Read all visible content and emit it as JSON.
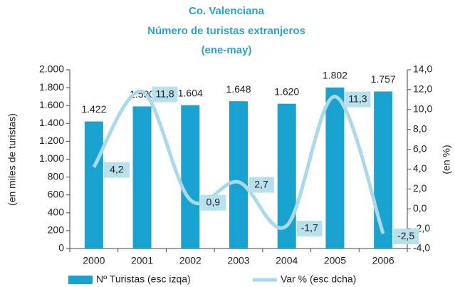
{
  "chart_data": {
    "type": "bar_line",
    "title": [
      "Co. Valenciana",
      "Número de turistas extranjeros",
      "(ene-may)"
    ],
    "y_label": "(en miles de turistas)",
    "y2_label": "(en %)",
    "categories": [
      "2000",
      "2001",
      "2002",
      "2003",
      "2004",
      "2005",
      "2006"
    ],
    "series": [
      {
        "name": "Nº Turistas (esc izqa)",
        "type": "bar",
        "color": "#19a2cf",
        "values": [
          1422,
          1590,
          1604,
          1648,
          1620,
          1802,
          1757
        ],
        "value_labels": [
          "1.422",
          "1.590",
          "1.604",
          "1.648",
          "1.620",
          "1.802",
          "1.757"
        ]
      },
      {
        "name": "Var % (esc dcha)",
        "type": "line",
        "axis": "y2",
        "color": "#a9d9ea",
        "label_fill": "#b9e0ed",
        "values": [
          4.2,
          11.8,
          0.9,
          2.7,
          -1.7,
          11.3,
          -2.5
        ],
        "value_labels": [
          "4,2",
          "11,8",
          "0,9",
          "2,7",
          "-1,7",
          "11,3",
          "-2,5"
        ]
      }
    ],
    "ylim": [
      0,
      2000
    ],
    "yticks": [
      0,
      200,
      400,
      600,
      800,
      {
        "value": 1000,
        "label": "1.000"
      },
      {
        "value": 1200,
        "label": "1.200"
      },
      {
        "value": 1400,
        "label": "1.400"
      },
      {
        "value": 1600,
        "label": "1.600"
      },
      {
        "value": 1800,
        "label": "1.800"
      },
      {
        "value": 2000,
        "label": "2.000"
      }
    ],
    "y2lim": [
      -4,
      14
    ],
    "y2ticks": [
      {
        "value": -4,
        "label": "-4,0"
      },
      {
        "value": -2,
        "label": "-2,0"
      },
      {
        "value": 0,
        "label": "0,0"
      },
      {
        "value": 2,
        "label": "2,0"
      },
      {
        "value": 4,
        "label": "4,0"
      },
      {
        "value": 6,
        "label": "6,0"
      },
      {
        "value": 8,
        "label": "8,0"
      },
      {
        "value": 10,
        "label": "10,0"
      },
      {
        "value": 12,
        "label": "12,0"
      },
      {
        "value": 14,
        "label": "14,0"
      }
    ],
    "grid": false
  }
}
